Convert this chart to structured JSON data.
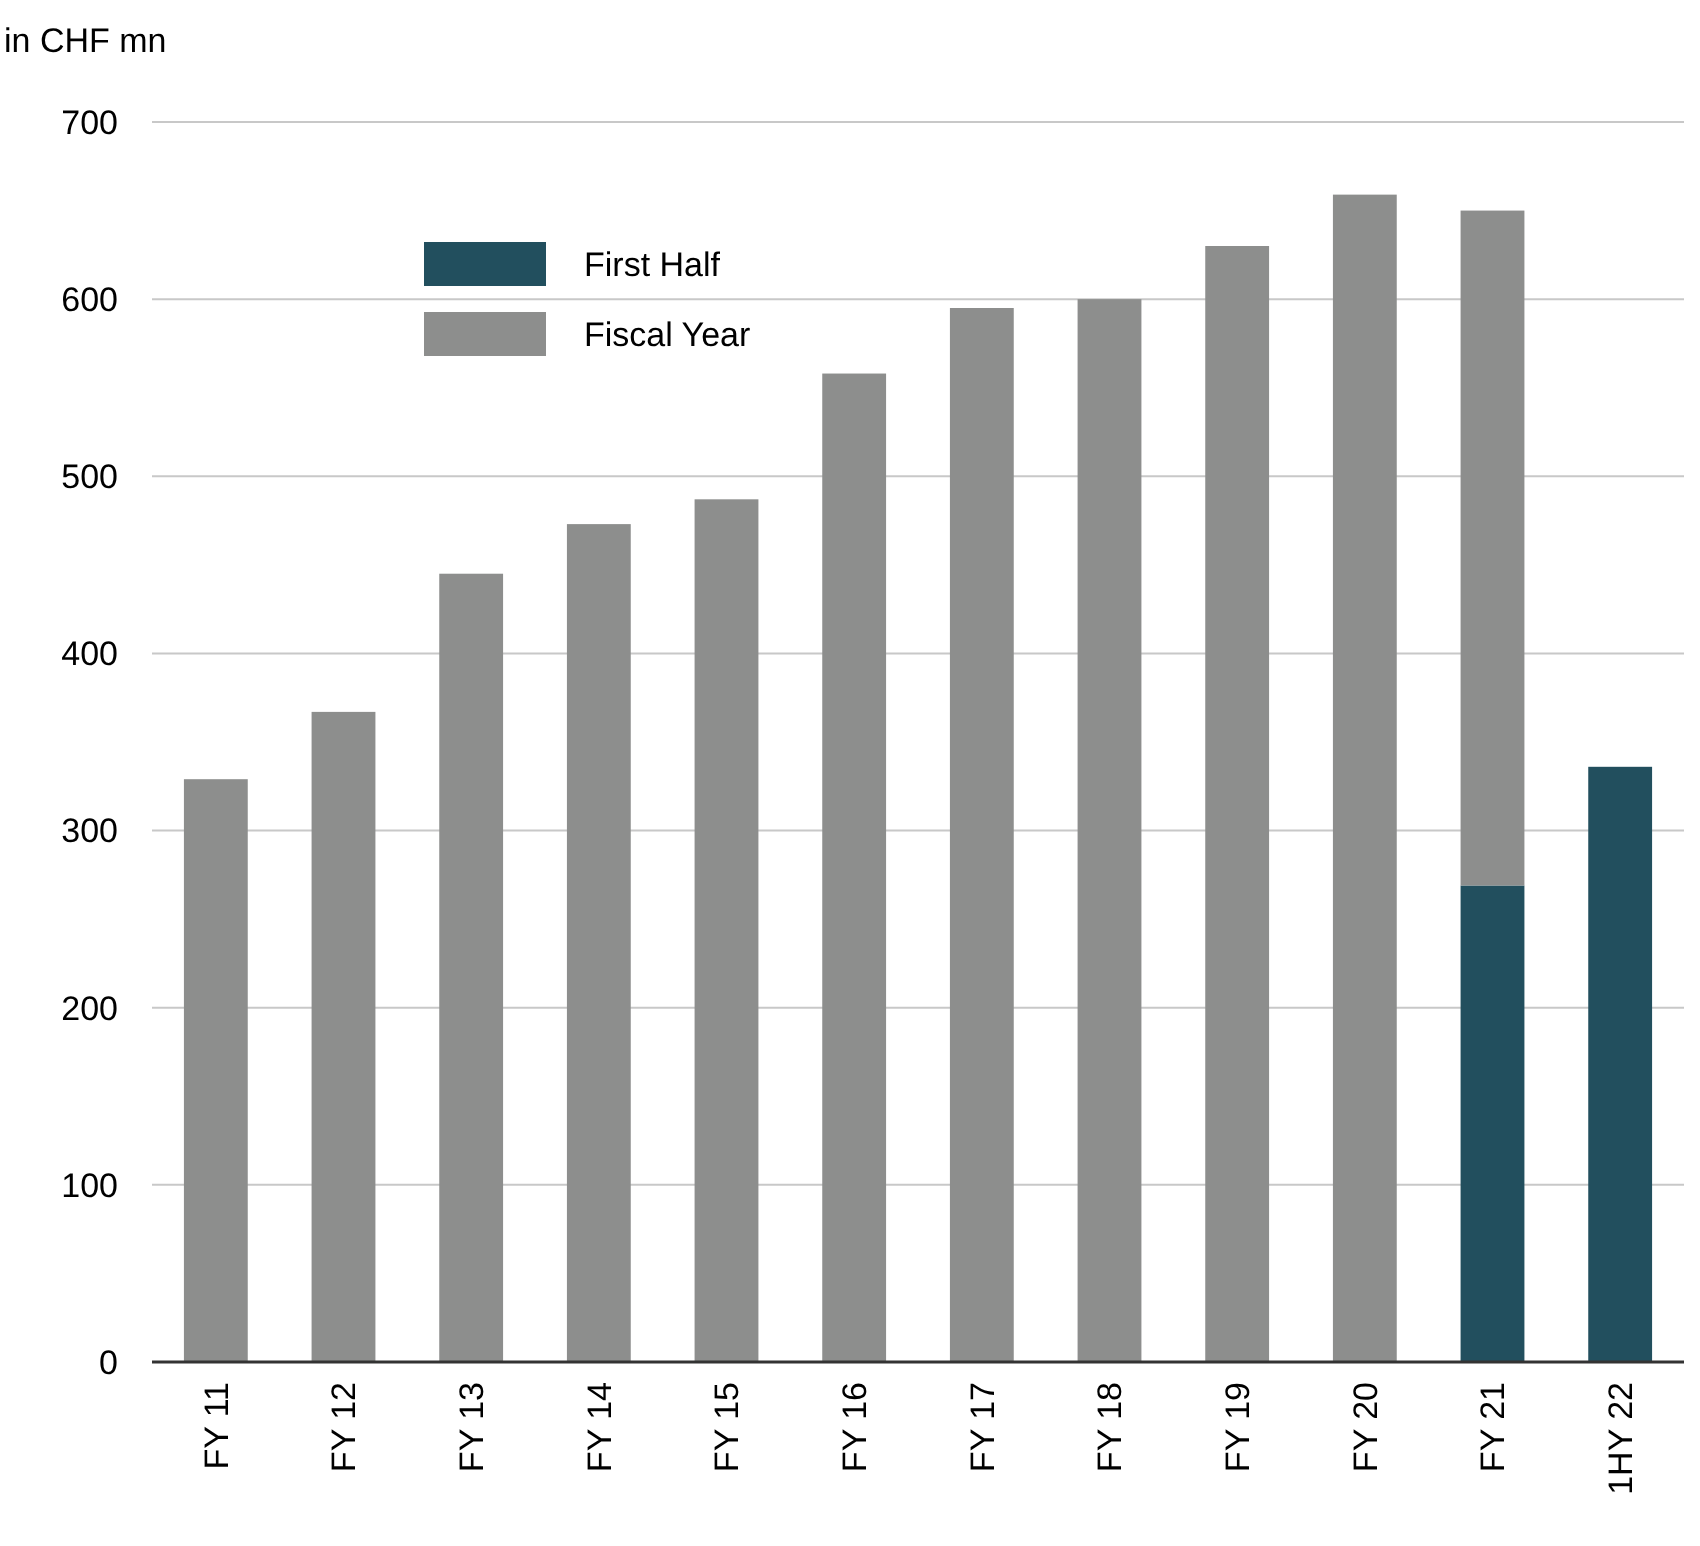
{
  "chart_data": {
    "type": "bar",
    "ylabel": "in CHF mn",
    "stacked": true,
    "categories": [
      "FY 11",
      "FY 12",
      "FY 13",
      "FY 14",
      "FY 15",
      "FY 16",
      "FY 17",
      "FY 18",
      "FY 19",
      "FY 20",
      "FY 21",
      "1HY 22"
    ],
    "series": [
      {
        "name": "First Half",
        "color": "#224f5e",
        "values": [
          null,
          null,
          null,
          null,
          null,
          null,
          null,
          null,
          null,
          null,
          269,
          336
        ]
      },
      {
        "name": "Fiscal Year",
        "color": "#8d8e8d",
        "values": [
          329,
          367,
          445,
          473,
          487,
          558,
          595,
          600,
          630,
          659,
          381,
          null
        ]
      }
    ],
    "ylim": [
      0,
      700
    ],
    "yticks": [
      0,
      100,
      200,
      300,
      400,
      500,
      600,
      700
    ],
    "grid": "y",
    "legend": "top left"
  }
}
